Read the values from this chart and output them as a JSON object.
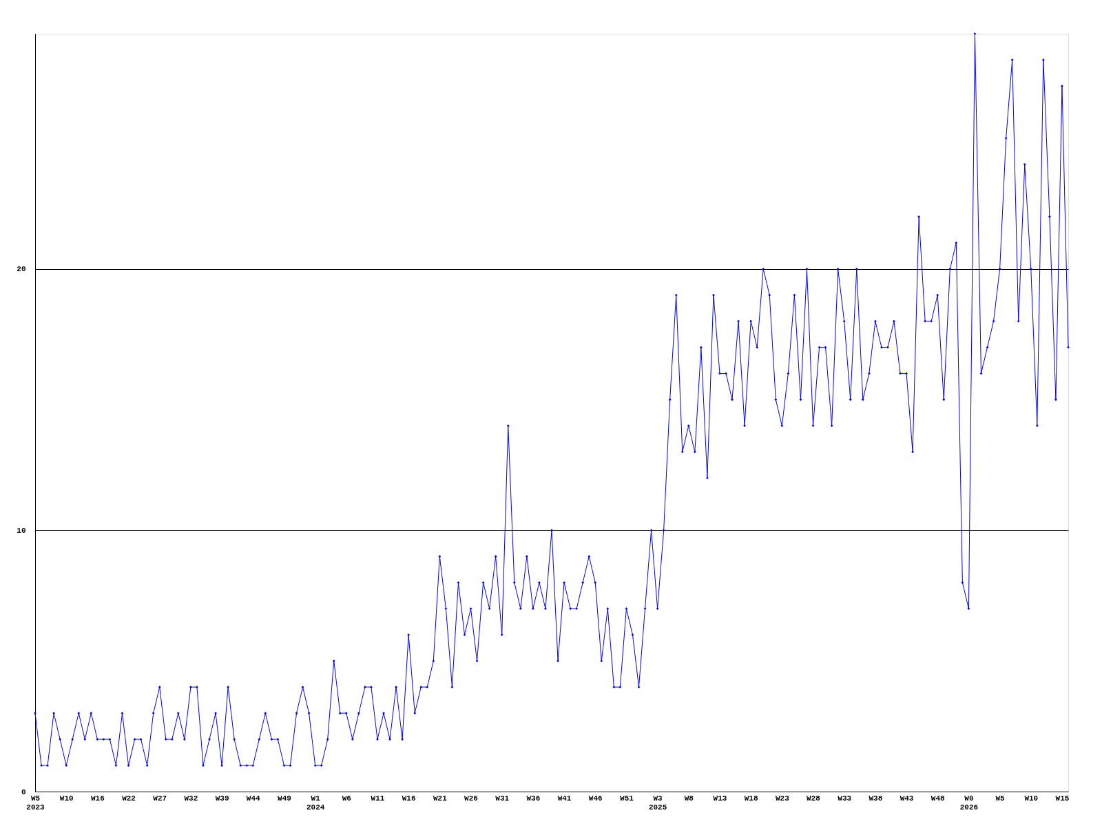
{
  "chart_data": {
    "type": "line",
    "categories": [
      "W5\n2023",
      null,
      null,
      null,
      null,
      "W10",
      null,
      null,
      null,
      null,
      "W16",
      null,
      null,
      null,
      null,
      "W22",
      null,
      null,
      null,
      null,
      "W27",
      null,
      null,
      null,
      null,
      "W32",
      null,
      null,
      null,
      null,
      "W39",
      null,
      null,
      null,
      null,
      "W44",
      null,
      null,
      null,
      null,
      "W49",
      null,
      null,
      null,
      null,
      "W1\n2024",
      null,
      null,
      null,
      null,
      "W6",
      null,
      null,
      null,
      null,
      "W11",
      null,
      null,
      null,
      null,
      "W16",
      null,
      null,
      null,
      null,
      "W21",
      null,
      null,
      null,
      null,
      "W26",
      null,
      null,
      null,
      null,
      "W31",
      null,
      null,
      null,
      null,
      "W36",
      null,
      null,
      null,
      null,
      "W41",
      null,
      null,
      null,
      null,
      "W46",
      null,
      null,
      null,
      null,
      "W51",
      null,
      null,
      null,
      null,
      "W3\n2025",
      null,
      null,
      null,
      null,
      "W8",
      null,
      null,
      null,
      null,
      "W13",
      null,
      null,
      null,
      null,
      "W18",
      null,
      null,
      null,
      null,
      "W23",
      null,
      null,
      null,
      null,
      "W28",
      null,
      null,
      null,
      null,
      "W33",
      null,
      null,
      null,
      null,
      "W38",
      null,
      null,
      null,
      null,
      "W43",
      null,
      null,
      null,
      null,
      "W48",
      null,
      null,
      null,
      null,
      "W0\n2026",
      null,
      null,
      null,
      null,
      "W5",
      null,
      null,
      null,
      null,
      "W10",
      null,
      null,
      null,
      null,
      "W15",
      null
    ],
    "series": [
      {
        "color": "#0000ff",
        "values": [
          3,
          1,
          1,
          3,
          2,
          1,
          2,
          3,
          2,
          3,
          2,
          2,
          2,
          1,
          3,
          1,
          2,
          2,
          1,
          3,
          4,
          2,
          2,
          3,
          2,
          4,
          4,
          1,
          2,
          3,
          1,
          4,
          2,
          1,
          1,
          1,
          2,
          3,
          2,
          2,
          1,
          1,
          3,
          4,
          3,
          1,
          1,
          2,
          5,
          3,
          3,
          2,
          3,
          4,
          4,
          2,
          3,
          2,
          4,
          2,
          6,
          3,
          4,
          4,
          5,
          9,
          7,
          4,
          8,
          6,
          7,
          5,
          8,
          7,
          9,
          6,
          14,
          8,
          7,
          9,
          7,
          8,
          7,
          10,
          5,
          8,
          7,
          7,
          8,
          9,
          8,
          5,
          7,
          4,
          4,
          7,
          6,
          4,
          7,
          10,
          7,
          10,
          15,
          19,
          13,
          14,
          13,
          17,
          12,
          19,
          16,
          16,
          15,
          18,
          14,
          18,
          17,
          20,
          19,
          15,
          14,
          16,
          19,
          15,
          20,
          14,
          17,
          17,
          14,
          20,
          18,
          15,
          20,
          15,
          16,
          18,
          17,
          17,
          18,
          16,
          16,
          13,
          22,
          18,
          18,
          19,
          15,
          20,
          21,
          8,
          7,
          29,
          16,
          17,
          18,
          20,
          25,
          28,
          18,
          24,
          20,
          14,
          28,
          22,
          15,
          27,
          17
        ]
      }
    ],
    "ylim": [
      0,
      29
    ],
    "yticks": [
      0,
      10,
      20
    ],
    "grid": "y",
    "marker": "diamond",
    "line_style": "solid",
    "legend": false
  }
}
